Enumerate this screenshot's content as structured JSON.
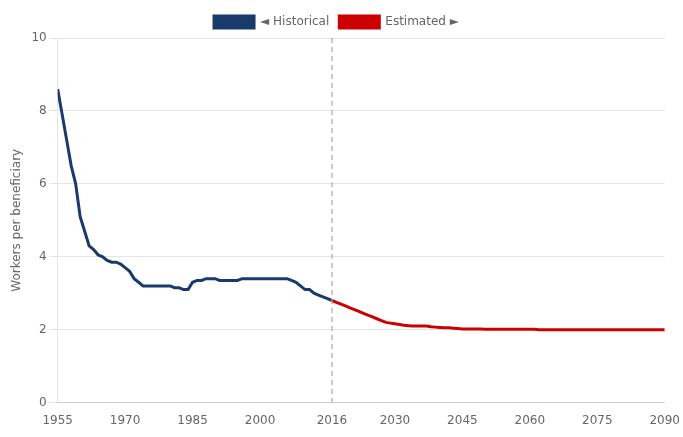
{
  "chart_data": {
    "type": "line",
    "y_label": "Workers per beneficiary",
    "xlim": [
      1955,
      2090
    ],
    "xticks": [
      1955,
      1970,
      1985,
      2000,
      2016,
      2030,
      2045,
      2060,
      2075,
      2090
    ],
    "ylim": [
      0,
      10
    ],
    "yticks": [
      0,
      2,
      4,
      6,
      8,
      10
    ],
    "grid": "y",
    "legend": "top",
    "annotations": [
      {
        "type": "vline",
        "x": 2016,
        "line_style": "dashed"
      }
    ],
    "series": [
      {
        "name": "◄ Historical",
        "color": "#1a3a6b",
        "x": [
          1955,
          1956,
          1957,
          1958,
          1959,
          1960,
          1961,
          1962,
          1963,
          1964,
          1965,
          1966,
          1967,
          1968,
          1969,
          1970,
          1971,
          1972,
          1973,
          1974,
          1975,
          1976,
          1977,
          1978,
          1979,
          1980,
          1981,
          1982,
          1983,
          1984,
          1985,
          1986,
          1987,
          1988,
          1989,
          1990,
          1991,
          1992,
          1993,
          1994,
          1995,
          1996,
          1997,
          1998,
          1999,
          2000,
          2001,
          2002,
          2003,
          2004,
          2005,
          2006,
          2007,
          2008,
          2009,
          2010,
          2011,
          2012,
          2013,
          2014,
          2015,
          2016
        ],
        "values": [
          8.6,
          7.9,
          7.2,
          6.5,
          6.0,
          5.1,
          4.7,
          4.3,
          4.2,
          4.05,
          4.0,
          3.9,
          3.85,
          3.85,
          3.8,
          3.7,
          3.6,
          3.4,
          3.3,
          3.2,
          3.2,
          3.2,
          3.2,
          3.2,
          3.2,
          3.2,
          3.15,
          3.15,
          3.1,
          3.1,
          3.3,
          3.35,
          3.35,
          3.4,
          3.4,
          3.4,
          3.35,
          3.35,
          3.35,
          3.35,
          3.35,
          3.4,
          3.4,
          3.4,
          3.4,
          3.4,
          3.4,
          3.4,
          3.4,
          3.4,
          3.4,
          3.4,
          3.35,
          3.3,
          3.2,
          3.1,
          3.1,
          3.0,
          2.95,
          2.9,
          2.85,
          2.8
        ]
      },
      {
        "name": "Estimated ►",
        "color": "#cc0000",
        "x": [
          2016,
          2017,
          2018,
          2019,
          2020,
          2021,
          2022,
          2023,
          2024,
          2025,
          2026,
          2027,
          2028,
          2029,
          2030,
          2031,
          2032,
          2033,
          2034,
          2035,
          2036,
          2037,
          2038,
          2039,
          2040,
          2041,
          2042,
          2043,
          2044,
          2045,
          2046,
          2047,
          2048,
          2049,
          2050,
          2051,
          2052,
          2053,
          2054,
          2055,
          2056,
          2057,
          2058,
          2059,
          2060,
          2061,
          2062,
          2063,
          2064,
          2065,
          2066,
          2067,
          2068,
          2069,
          2070,
          2071,
          2072,
          2073,
          2074,
          2075,
          2076,
          2077,
          2078,
          2079,
          2080,
          2081,
          2082,
          2083,
          2084,
          2085,
          2086,
          2087,
          2088,
          2089,
          2090
        ],
        "values": [
          2.8,
          2.75,
          2.7,
          2.65,
          2.6,
          2.55,
          2.5,
          2.45,
          2.4,
          2.35,
          2.3,
          2.25,
          2.2,
          2.18,
          2.16,
          2.14,
          2.12,
          2.11,
          2.1,
          2.1,
          2.1,
          2.1,
          2.08,
          2.07,
          2.06,
          2.05,
          2.05,
          2.04,
          2.03,
          2.02,
          2.02,
          2.02,
          2.02,
          2.02,
          2.01,
          2.01,
          2.01,
          2.01,
          2.01,
          2.01,
          2.01,
          2.01,
          2.01,
          2.01,
          2.01,
          2.01,
          2.0,
          2.0,
          2.0,
          2.0,
          2.0,
          2.0,
          2.0,
          2.0,
          2.0,
          2.0,
          2.0,
          2.0,
          2.0,
          2.0,
          2.0,
          2.0,
          2.0,
          2.0,
          2.0,
          2.0,
          2.0,
          2.0,
          2.0,
          2.0,
          2.0,
          2.0,
          2.0,
          2.0,
          2.0
        ]
      }
    ]
  }
}
